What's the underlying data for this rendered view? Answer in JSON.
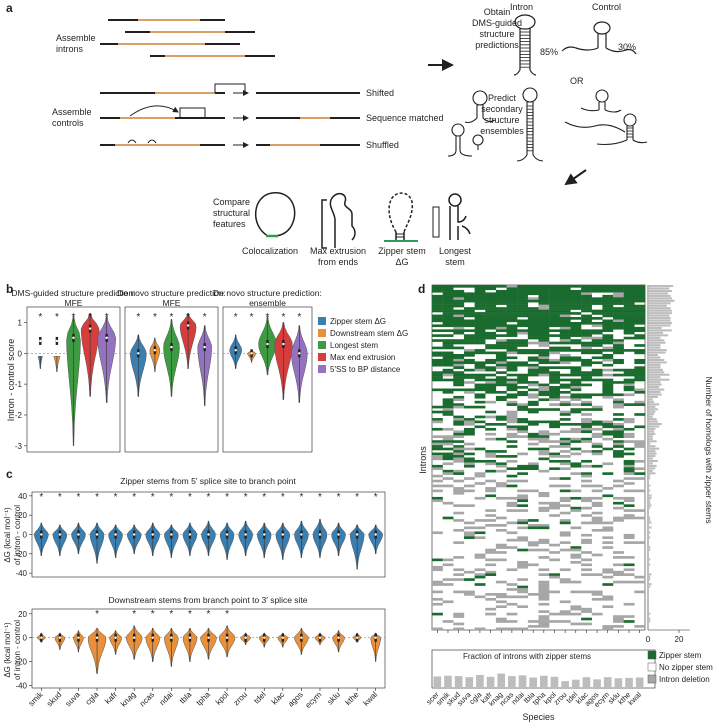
{
  "colors": {
    "zipper": "#3a7fb0",
    "downstream": "#e8913a",
    "longest": "#3e9b42",
    "maxend": "#d63e3e",
    "ss_bp": "#9472c0",
    "intron_orange": "#d9a066",
    "heat_green": "#1a6b2e",
    "heat_grey": "#a6a6a6",
    "bar_grey": "#bdbdbd"
  },
  "panel_a": {
    "label": "a",
    "assemble_introns": "Assemble introns",
    "assemble_controls": "Assemble controls",
    "shifted": "Shifted",
    "sequence_matched": "Sequence matched",
    "shuffled": "Shuffled",
    "obtain_dms": "Obtain DMS-guided structure predictions",
    "predict_secondary": "Predict secondary structure ensembles",
    "intron": "Intron",
    "control": "Control",
    "pct_intron": "85%",
    "pct_control": "30%",
    "or": "OR",
    "compare": "Compare structural features",
    "features": [
      "Colocalization",
      "Max extrusion from ends",
      "Zipper stem ΔG",
      "Longest stem"
    ]
  },
  "panel_b": {
    "label": "b",
    "ylabel": "Intron - control score",
    "subplots": [
      {
        "title": "DMS-guided structure prediction: MFE"
      },
      {
        "title": "De novo structure prediction: MFE"
      },
      {
        "title": "De novo structure prediction: ensemble"
      }
    ],
    "yticks": [
      "1",
      "0",
      "-1",
      "-2",
      "-3"
    ],
    "star": "*",
    "legend": [
      "Zipper stem ΔG",
      "Downstream stem ΔG",
      "Longest stem",
      "Max end extrusion",
      "5′SS to BP distance"
    ]
  },
  "panel_c": {
    "label": "c",
    "top_title": "Zipper stems from 5′ splice site to branch point",
    "bottom_title": "Downstream stems from branch point to 3′ splice site",
    "ylabel": "ΔG (kcal mol⁻¹) of intron - control",
    "top_yticks": [
      "40",
      "20",
      "0",
      "-20",
      "-40"
    ],
    "bottom_yticks": [
      "20",
      "0",
      "-20",
      "-40"
    ],
    "species": [
      "smik",
      "skud",
      "suva",
      "cgla",
      "kafr",
      "knag",
      "ncas",
      "ndai",
      "tbla",
      "tpha",
      "kpol",
      "zrou",
      "tdel",
      "klac",
      "agos",
      "ecym",
      "sklu",
      "kthe",
      "kwal"
    ],
    "top_stars": [
      true,
      true,
      true,
      true,
      true,
      true,
      true,
      true,
      true,
      true,
      true,
      true,
      true,
      true,
      true,
      true,
      true,
      true,
      true
    ],
    "bottom_stars": [
      false,
      false,
      false,
      true,
      false,
      true,
      true,
      true,
      true,
      true,
      true,
      false,
      false,
      false,
      false,
      false,
      false,
      false,
      false
    ],
    "star": "*"
  },
  "panel_d": {
    "label": "d",
    "ylabel": "Introns",
    "right_label": "Number of homologs with zipper stems",
    "right_ticks": [
      "0",
      "20"
    ],
    "bar_title": "Fraction of introns with zipper stems",
    "xlabel": "Species",
    "species": [
      "scer",
      "smik",
      "skud",
      "suva",
      "cgla",
      "kafr",
      "knag",
      "ncas",
      "ndai",
      "tbla",
      "tpha",
      "kpol",
      "zrou",
      "tdel",
      "klac",
      "agos",
      "ecym",
      "sklu",
      "kthe",
      "kwal"
    ],
    "fractions": [
      0.32,
      0.34,
      0.33,
      0.3,
      0.36,
      0.31,
      0.4,
      0.33,
      0.35,
      0.29,
      0.34,
      0.31,
      0.19,
      0.23,
      0.3,
      0.24,
      0.3,
      0.27,
      0.28,
      0.29
    ],
    "legend": [
      "Zipper stem",
      "No zipper stem",
      "Intron deletion"
    ]
  }
}
